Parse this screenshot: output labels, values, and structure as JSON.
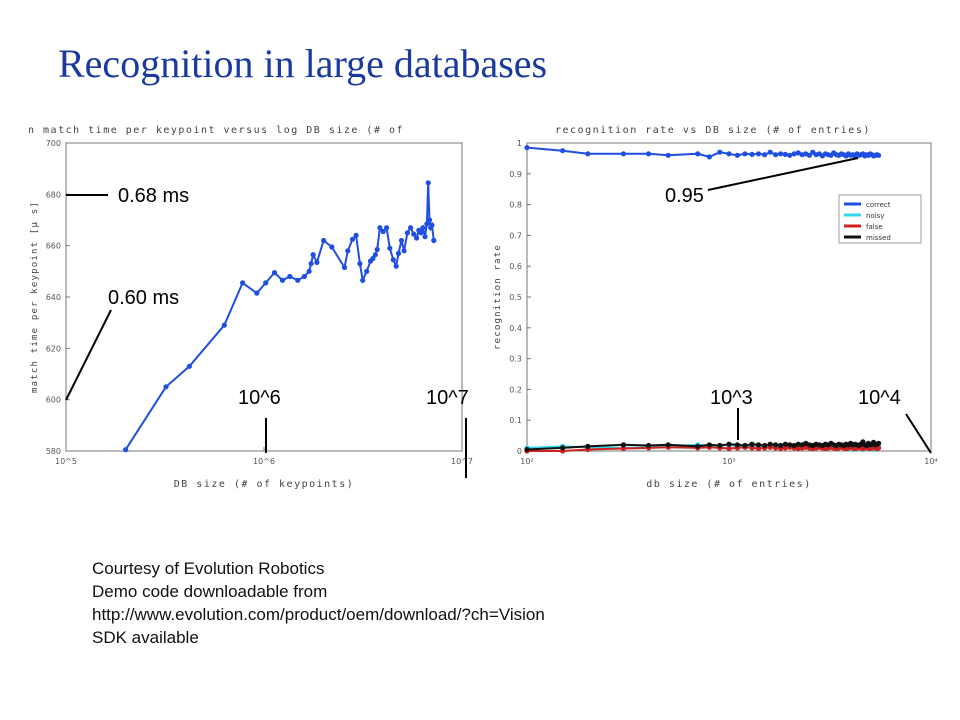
{
  "slide": {
    "title": "Recognition in large databases",
    "caption": [
      "Courtesy of Evolution Robotics",
      "Demo code downloadable from",
      "http://www.evolution.com/product/oem/download/?ch=Vision",
      "SDK available"
    ]
  },
  "colors": {
    "title": "#1a3aa0",
    "correct": "#1f4fe0",
    "noisy": "#33d6e8",
    "false": "#d02020",
    "missed": "#111111"
  },
  "chart_data": [
    {
      "type": "line",
      "title": "n match time per keypoint versus log DB size (# of",
      "xlabel": "DB size (# of keypoints)",
      "ylabel": "match time per keypoint [µ s]",
      "xscale": "log",
      "xlim": [
        100000,
        10000000
      ],
      "ylim": [
        580,
        700
      ],
      "xtick_labels": [
        "10^5",
        "10^6",
        "10^7"
      ],
      "ytick_labels": [
        "580",
        "600",
        "620",
        "640",
        "660",
        "680",
        "700"
      ],
      "annotations": [
        {
          "text": "0.68 ms",
          "x": 100000,
          "y": 680
        },
        {
          "text": "0.60 ms",
          "x": 100000,
          "y": 600
        },
        {
          "text": "10^6",
          "x": 1000000,
          "y": 580
        },
        {
          "text": "10^7",
          "x": 10000000,
          "y": 580
        }
      ],
      "series": [
        {
          "x": [
            200000,
            320000,
            420000,
            630000,
            780000,
            920000,
            1020000,
            1130000,
            1240000,
            1350000,
            1480000,
            1600000,
            1690000,
            1730000,
            1770000,
            1850000,
            2000000,
            2200000,
            2550000,
            2650000,
            2800000,
            2920000,
            3050000,
            3150000,
            3300000,
            3450000,
            3550000,
            3650000,
            3730000,
            3850000,
            4000000,
            4160000,
            4320000,
            4500000,
            4650000,
            4780000,
            4950000,
            5100000,
            5300000,
            5500000,
            5700000,
            5900000,
            6050000,
            6200000,
            6350000,
            6500000,
            6650000,
            6750000,
            6850000,
            6950000,
            7050000,
            7200000
          ],
          "y": [
            580.5,
            605,
            613,
            629,
            645.5,
            641.5,
            645.5,
            649.5,
            646.5,
            648,
            646.5,
            648,
            650,
            653,
            656.5,
            653.5,
            662,
            659.5,
            651.5,
            658,
            662.5,
            664,
            653,
            646.5,
            650,
            654,
            655,
            656.5,
            658.5,
            667,
            665.5,
            667,
            659,
            654.5,
            652,
            657,
            662,
            658,
            665,
            667,
            664.5,
            663,
            666,
            665,
            667,
            663.5,
            668.5,
            684.5,
            670,
            667,
            668,
            662
          ]
        }
      ]
    },
    {
      "type": "line",
      "title": "recognition rate vs DB size (# of entries)",
      "xlabel": "db size (# of entries)",
      "ylabel": "recognition rate",
      "xscale": "log",
      "xlim": [
        100,
        10000
      ],
      "ylim": [
        0,
        1
      ],
      "xtick_labels": [
        "10²",
        "10³",
        "10⁴"
      ],
      "ytick_labels": [
        "0",
        "0.1",
        "0.2",
        "0.3",
        "0.4",
        "0.5",
        "0.6",
        "0.7",
        "0.8",
        "0.9",
        "1"
      ],
      "legend_position": "top-right",
      "annotations": [
        {
          "text": "0.95",
          "x": 4500,
          "y": 0.965
        },
        {
          "text": "10^3",
          "x": 1000,
          "y": 0.02
        },
        {
          "text": "10^4",
          "x": 10000,
          "y": 0
        }
      ],
      "series": [
        {
          "name": "correct",
          "x": [
            100,
            150,
            200,
            300,
            400,
            500,
            700,
            800,
            900,
            1000,
            1100,
            1200,
            1300,
            1400,
            1500,
            1600,
            1700,
            1800,
            1900,
            2000,
            2100,
            2200,
            2300,
            2400,
            2500,
            2600,
            2700,
            2800,
            2900,
            3000,
            3100,
            3200,
            3300,
            3400,
            3500,
            3600,
            3700,
            3800,
            3900,
            4000,
            4100,
            4200,
            4300,
            4400,
            4500,
            4600,
            4700,
            4800,
            4900,
            5000,
            5100,
            5200,
            5300,
            5400,
            5500
          ],
          "y": [
            0.985,
            0.975,
            0.965,
            0.965,
            0.965,
            0.96,
            0.965,
            0.955,
            0.97,
            0.965,
            0.96,
            0.965,
            0.963,
            0.965,
            0.962,
            0.97,
            0.962,
            0.965,
            0.963,
            0.96,
            0.965,
            0.968,
            0.962,
            0.965,
            0.96,
            0.97,
            0.962,
            0.965,
            0.958,
            0.965,
            0.962,
            0.96,
            0.968,
            0.962,
            0.96,
            0.965,
            0.962,
            0.958,
            0.965,
            0.96,
            0.962,
            0.958,
            0.965,
            0.96,
            0.962,
            0.965,
            0.958,
            0.962,
            0.96,
            0.965,
            0.962,
            0.958,
            0.96,
            0.962,
            0.96
          ]
        },
        {
          "name": "noisy",
          "x": [
            100,
            150,
            200,
            300,
            400,
            500,
            700,
            800,
            900,
            1000,
            1100,
            1200,
            1300,
            1400,
            1500,
            1600,
            1700,
            1800,
            1900,
            2000,
            2100,
            2200,
            2300,
            2400,
            2500,
            2600,
            2700,
            2800,
            2900,
            3000,
            3100,
            3200,
            3300,
            3400,
            3500,
            3600,
            3700,
            3800,
            3900,
            4000,
            4100,
            4200,
            4300,
            4400,
            4500,
            4600,
            4700,
            4800,
            4900,
            5000,
            5100,
            5200,
            5300,
            5400,
            5500
          ],
          "y": [
            0.01,
            0.015,
            0.012,
            0.01,
            0.012,
            0.015,
            0.02,
            0.018,
            0.015,
            0.02,
            0.015,
            0.012,
            0.018,
            0.015,
            0.012,
            0.02,
            0.015,
            0.012,
            0.015,
            0.018,
            0.012,
            0.015,
            0.02,
            0.012,
            0.015,
            0.018,
            0.012,
            0.015,
            0.012,
            0.018,
            0.015,
            0.012,
            0.018,
            0.015,
            0.012,
            0.015,
            0.018,
            0.012,
            0.015,
            0.012,
            0.005,
            0.015,
            0.012,
            0.018,
            0.015,
            0.005,
            0.015,
            0.012,
            0.018,
            0.015,
            0.012,
            0.005,
            0.015,
            0.012,
            0.015
          ]
        },
        {
          "name": "false",
          "x": [
            100,
            150,
            200,
            300,
            400,
            500,
            700,
            800,
            900,
            1000,
            1100,
            1200,
            1300,
            1400,
            1500,
            1600,
            1700,
            1800,
            1900,
            2000,
            2100,
            2200,
            2300,
            2400,
            2500,
            2600,
            2700,
            2800,
            2900,
            3000,
            3100,
            3200,
            3300,
            3400,
            3500,
            3600,
            3700,
            3800,
            3900,
            4000,
            4100,
            4200,
            4300,
            4400,
            4500,
            4600,
            4700,
            4800,
            4900,
            5000,
            5100,
            5200,
            5300,
            5400,
            5500
          ],
          "y": [
            0,
            0,
            0.005,
            0.008,
            0.01,
            0.012,
            0.01,
            0.012,
            0.01,
            0.008,
            0.01,
            0.012,
            0.01,
            0.008,
            0.01,
            0.012,
            0.01,
            0.008,
            0.01,
            0.012,
            0.01,
            0.008,
            0.01,
            0.012,
            0.01,
            0.008,
            0.01,
            0.012,
            0.01,
            0.008,
            0.01,
            0.012,
            0.01,
            0.008,
            0.01,
            0.012,
            0.01,
            0.008,
            0.01,
            0.012,
            0.01,
            0.008,
            0.01,
            0.012,
            0.01,
            0.008,
            0.01,
            0.012,
            0.01,
            0.008,
            0.01,
            0.012,
            0.01,
            0.008,
            0.01
          ]
        },
        {
          "name": "missed",
          "x": [
            100,
            150,
            200,
            300,
            400,
            500,
            700,
            800,
            900,
            1000,
            1100,
            1200,
            1300,
            1400,
            1500,
            1600,
            1700,
            1800,
            1900,
            2000,
            2100,
            2200,
            2300,
            2400,
            2500,
            2600,
            2700,
            2800,
            2900,
            3000,
            3100,
            3200,
            3300,
            3400,
            3500,
            3600,
            3700,
            3800,
            3900,
            4000,
            4100,
            4200,
            4300,
            4400,
            4500,
            4600,
            4700,
            4800,
            4900,
            5000,
            5100,
            5200,
            5300,
            5400,
            5500
          ],
          "y": [
            0.005,
            0.01,
            0.015,
            0.02,
            0.018,
            0.02,
            0.015,
            0.02,
            0.018,
            0.022,
            0.02,
            0.018,
            0.022,
            0.02,
            0.018,
            0.022,
            0.02,
            0.018,
            0.022,
            0.02,
            0.018,
            0.022,
            0.02,
            0.025,
            0.02,
            0.018,
            0.022,
            0.02,
            0.018,
            0.022,
            0.02,
            0.025,
            0.02,
            0.018,
            0.022,
            0.02,
            0.018,
            0.022,
            0.02,
            0.025,
            0.02,
            0.022,
            0.02,
            0.018,
            0.022,
            0.03,
            0.02,
            0.018,
            0.025,
            0.02,
            0.022,
            0.028,
            0.02,
            0.022,
            0.025
          ]
        }
      ]
    }
  ]
}
